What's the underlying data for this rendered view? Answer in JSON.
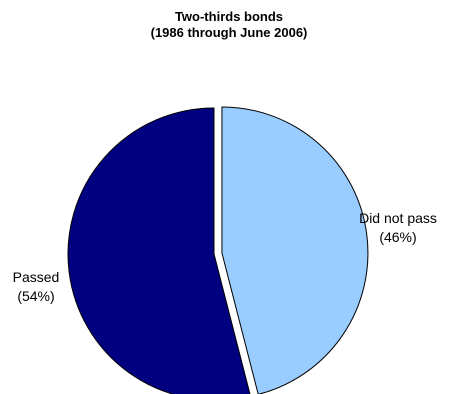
{
  "chart_data": {
    "type": "pie",
    "title_lines": [
      "Two-thirds bonds",
      "(1986 through June 2006)"
    ],
    "slices": [
      {
        "label": "Did not pass",
        "value": 46,
        "display": "(46%)",
        "color": "#99ccff",
        "exploded": true
      },
      {
        "label": "Passed",
        "value": 54,
        "display": "(54%)",
        "color": "#000080",
        "exploded": false
      }
    ],
    "start": "12 o'clock",
    "direction": "clockwise",
    "legend": "none"
  }
}
